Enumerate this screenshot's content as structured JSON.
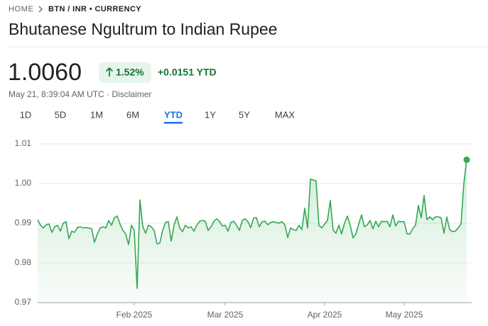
{
  "breadcrumb": {
    "home": "HOME",
    "current": "BTN / INR • CURRENCY"
  },
  "header": {
    "title": "Bhutanese Ngultrum to Indian Rupee"
  },
  "quote": {
    "price": "1.0060",
    "change_percent": "1.52%",
    "change": "+0.0151 YTD",
    "timestamp": "May 21, 8:39:04 AM UTC",
    "disclaimer": "Disclaimer"
  },
  "tabs": {
    "items": [
      "1D",
      "5D",
      "1M",
      "6M",
      "YTD",
      "1Y",
      "5Y",
      "MAX"
    ],
    "selected": "YTD"
  },
  "chart_data": {
    "type": "line",
    "color": "#34a853",
    "values": [
      0.9909,
      0.9895,
      0.9888,
      0.9896,
      0.9898,
      0.9877,
      0.9891,
      0.9895,
      0.988,
      0.99,
      0.9904,
      0.9861,
      0.988,
      0.9877,
      0.9889,
      0.9891,
      0.9888,
      0.9889,
      0.9888,
      0.9886,
      0.9852,
      0.9873,
      0.9888,
      0.9891,
      0.9888,
      0.9907,
      0.9895,
      0.9914,
      0.9918,
      0.9898,
      0.9882,
      0.9873,
      0.9846,
      0.9895,
      0.9882,
      0.9736,
      0.9959,
      0.9891,
      0.9875,
      0.9895,
      0.9891,
      0.9882,
      0.9848,
      0.985,
      0.9882,
      0.9902,
      0.9904,
      0.9855,
      0.9895,
      0.9916,
      0.9888,
      0.9879,
      0.9895,
      0.9888,
      0.9891,
      0.988,
      0.9895,
      0.9905,
      0.9907,
      0.9905,
      0.9882,
      0.9891,
      0.9905,
      0.9911,
      0.9905,
      0.9893,
      0.9895,
      0.988,
      0.9902,
      0.9905,
      0.9895,
      0.9882,
      0.9907,
      0.9911,
      0.9904,
      0.9889,
      0.9913,
      0.9914,
      0.9891,
      0.9904,
      0.9905,
      0.9896,
      0.9902,
      0.9904,
      0.9902,
      0.99,
      0.9904,
      0.9896,
      0.9864,
      0.9888,
      0.9884,
      0.9882,
      0.9895,
      0.9884,
      0.9938,
      0.9888,
      1.0011,
      1.0009,
      1.0007,
      0.9895,
      0.9888,
      0.9898,
      0.9907,
      0.9957,
      0.9882,
      0.9875,
      0.9895,
      0.9873,
      0.99,
      0.9918,
      0.9895,
      0.9863,
      0.9873,
      0.9898,
      0.9921,
      0.9891,
      0.9896,
      0.9907,
      0.9886,
      0.9905,
      0.9891,
      0.9905,
      0.9904,
      0.9905,
      0.9891,
      0.9921,
      0.9893,
      0.9905,
      0.9904,
      0.9904,
      0.9873,
      0.9873,
      0.9886,
      0.9895,
      0.9945,
      0.9914,
      0.997,
      0.9909,
      0.9916,
      0.9909,
      0.9916,
      0.9916,
      0.9914,
      0.9875,
      0.9916,
      0.9884,
      0.9879,
      0.988,
      0.9888,
      0.9898,
      1.0,
      1.006
    ],
    "xlim": [
      0,
      151
    ],
    "xticks": [
      {
        "value": 34,
        "label": "Feb 2025"
      },
      {
        "value": 66,
        "label": "Mar 2025"
      },
      {
        "value": 101,
        "label": "Apr 2025"
      },
      {
        "value": 129,
        "label": "May 2025"
      }
    ],
    "ylim": [
      0.97,
      1.01
    ],
    "yticks": [
      0.97,
      0.98,
      0.99,
      {
        "value": 1,
        "label": "1.00"
      },
      1.01
    ],
    "grid": true
  }
}
